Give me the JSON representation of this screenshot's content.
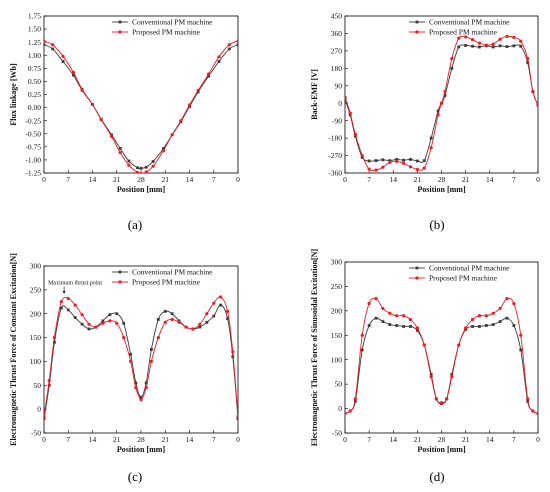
{
  "colors": {
    "conventional": "#3a3a3a",
    "proposed": "#ee1c24",
    "axis": "#000000"
  },
  "chart_data": [
    {
      "id": "a",
      "type": "line",
      "caption": "(a)",
      "xlabel": "Position [mm]",
      "ylabel": "Flux linkage [Wb]",
      "xtick_labels": [
        "0",
        "7",
        "14",
        "21",
        "28",
        "21",
        "14",
        "7",
        "0"
      ],
      "xlim": [
        0,
        56
      ],
      "ylim": [
        -1.25,
        1.75
      ],
      "yticks": [
        -1.25,
        -1.0,
        -0.75,
        -0.5,
        -0.25,
        0,
        0.25,
        0.5,
        0.75,
        1.0,
        1.25,
        1.5,
        1.75
      ],
      "ytick_labels": [
        "-1.25",
        "-1.00",
        "-0.75",
        "-0.50",
        "-0.25",
        "0.00",
        "0.25",
        "0.50",
        "0.75",
        "1.00",
        "1.25",
        "1.50",
        "1.75"
      ],
      "legend": {
        "position": "top-right",
        "entries": [
          "Conventional PM machine",
          "Proposed PM machine"
        ]
      },
      "series": [
        {
          "name": "Conventional PM machine",
          "x": [
            0,
            2.5,
            5.5,
            8.5,
            11,
            14,
            16.5,
            19.5,
            22,
            24.5,
            27,
            28,
            29.5,
            31.5,
            34.5,
            37,
            39.5,
            42,
            44.5,
            47.5,
            50.5,
            53.5,
            56
          ],
          "y": [
            1.2,
            1.12,
            0.88,
            0.62,
            0.33,
            0.06,
            -0.22,
            -0.52,
            -0.78,
            -1.02,
            -1.15,
            -1.16,
            -1.14,
            -1.03,
            -0.78,
            -0.52,
            -0.27,
            0.02,
            0.3,
            0.6,
            0.88,
            1.12,
            1.2
          ]
        },
        {
          "name": "Proposed PM machine",
          "x": [
            0,
            2.5,
            5.5,
            8.5,
            11,
            14,
            16.5,
            19.5,
            22,
            24.5,
            27,
            28,
            29.5,
            31.5,
            34.5,
            37,
            39.5,
            42,
            44.5,
            47.5,
            50.5,
            53.5,
            56
          ],
          "y": [
            1.27,
            1.2,
            0.98,
            0.67,
            0.35,
            0.06,
            -0.23,
            -0.55,
            -0.86,
            -1.1,
            -1.24,
            -1.26,
            -1.23,
            -1.12,
            -0.82,
            -0.52,
            -0.25,
            0.05,
            0.33,
            0.64,
            0.97,
            1.2,
            1.27
          ]
        }
      ]
    },
    {
      "id": "b",
      "type": "line",
      "caption": "(b)",
      "xlabel": "Position [mm]",
      "ylabel": "Back-EMF [V]",
      "xtick_labels": [
        "0",
        "7",
        "14",
        "21",
        "28",
        "21",
        "14",
        "7",
        "0"
      ],
      "xlim": [
        0,
        56
      ],
      "ylim": [
        -360,
        450
      ],
      "yticks": [
        -360,
        -270,
        -180,
        -90,
        0,
        90,
        180,
        270,
        360,
        450
      ],
      "ytick_labels": [
        "-360",
        "-270",
        "-180",
        "-90",
        "0",
        "90",
        "180",
        "270",
        "360",
        "450"
      ],
      "legend": {
        "position": "top-right",
        "entries": [
          "Conventional PM machine",
          "Proposed PM machine"
        ]
      },
      "series": [
        {
          "name": "Conventional PM machine",
          "x": [
            0,
            1.5,
            3,
            5,
            7,
            9,
            11,
            13,
            15,
            17,
            19,
            21,
            23,
            25,
            27,
            28,
            29,
            31,
            33,
            35,
            37,
            39,
            41,
            43,
            45,
            47,
            49,
            51,
            53,
            54.5,
            56
          ],
          "y": [
            20,
            -60,
            -170,
            -280,
            -298,
            -296,
            -292,
            -296,
            -290,
            -294,
            -290,
            -298,
            -296,
            -180,
            -40,
            0,
            40,
            180,
            290,
            298,
            294,
            290,
            296,
            290,
            296,
            292,
            296,
            294,
            210,
            60,
            -10
          ]
        },
        {
          "name": "Proposed PM machine",
          "x": [
            0,
            1.5,
            3,
            5,
            7,
            9,
            11,
            13,
            15,
            17,
            19,
            21,
            23,
            25,
            27,
            28,
            29,
            31,
            33,
            35,
            37,
            39,
            41,
            43,
            45,
            47,
            49,
            51,
            53,
            54.5,
            56
          ],
          "y": [
            30,
            -50,
            -160,
            -270,
            -340,
            -345,
            -330,
            -305,
            -300,
            -310,
            -328,
            -342,
            -335,
            -230,
            -60,
            0,
            60,
            230,
            335,
            342,
            328,
            310,
            300,
            305,
            330,
            345,
            340,
            320,
            230,
            60,
            -10
          ]
        }
      ]
    },
    {
      "id": "c",
      "type": "line",
      "caption": "(c)",
      "xlabel": "Position [mm]",
      "ylabel": "Electromagnetic Thrust Force of Constant Excitation[N]",
      "xtick_labels": [
        "0",
        "7",
        "14",
        "21",
        "28",
        "21",
        "14",
        "7",
        "0"
      ],
      "xlim": [
        0,
        56
      ],
      "ylim": [
        -50,
        300
      ],
      "yticks": [
        -50,
        0,
        50,
        100,
        150,
        200,
        250,
        300
      ],
      "ytick_labels": [
        "-50",
        "0",
        "50",
        "100",
        "150",
        "200",
        "250",
        "300"
      ],
      "legend": {
        "position": "top-right",
        "entries": [
          "Conventional PM machine",
          "Proposed PM machine"
        ]
      },
      "annotation": {
        "text": "Maximum thrust point",
        "x": 5.8,
        "y": 240
      },
      "series": [
        {
          "name": "Conventional PM machine",
          "x": [
            0,
            1.5,
            3,
            5,
            7,
            9,
            11,
            13,
            15,
            17,
            19,
            21,
            23,
            25,
            26.5,
            28,
            29.5,
            31,
            33,
            35,
            37,
            39,
            41,
            43,
            45,
            47,
            49,
            51,
            53,
            54.5,
            56
          ],
          "y": [
            -20,
            50,
            140,
            212,
            208,
            192,
            178,
            168,
            172,
            185,
            198,
            200,
            180,
            115,
            55,
            25,
            55,
            125,
            188,
            205,
            200,
            185,
            172,
            168,
            172,
            182,
            195,
            218,
            190,
            110,
            -20
          ]
        },
        {
          "name": "Proposed PM machine",
          "x": [
            0,
            1.5,
            3,
            5,
            7,
            9,
            11,
            13,
            15,
            17,
            19,
            21,
            23,
            25,
            26.5,
            28,
            29.5,
            31,
            33,
            35,
            37,
            39,
            41,
            43,
            45,
            47,
            49,
            51,
            53,
            54.5,
            56
          ],
          "y": [
            -15,
            60,
            150,
            225,
            232,
            218,
            198,
            178,
            172,
            180,
            185,
            180,
            150,
            100,
            45,
            20,
            45,
            100,
            150,
            182,
            188,
            182,
            172,
            168,
            178,
            200,
            222,
            235,
            205,
            120,
            -15
          ]
        }
      ]
    },
    {
      "id": "d",
      "type": "line",
      "caption": "(d)",
      "xlabel": "Position [mm]",
      "ylabel": "Electromagnetic Thrust Force of Sinusoidal Excitation[N]",
      "xtick_labels": [
        "0",
        "7",
        "14",
        "21",
        "28",
        "21",
        "14",
        "7",
        "0"
      ],
      "xlim": [
        0,
        56
      ],
      "ylim": [
        -50,
        300
      ],
      "yticks": [
        -50,
        0,
        50,
        100,
        150,
        200,
        250,
        300
      ],
      "ytick_labels": [
        "-50",
        "0",
        "50",
        "100",
        "150",
        "200",
        "250",
        "300"
      ],
      "legend": {
        "position": "top-right",
        "entries": [
          "Conventional PM machine",
          "Proposed PM machine"
        ]
      },
      "series": [
        {
          "name": "Conventional PM machine",
          "x": [
            0,
            1.5,
            3,
            5,
            7,
            9,
            11,
            13,
            15,
            17,
            19,
            21,
            23,
            25,
            26.5,
            28,
            29.5,
            31,
            33,
            35,
            37,
            39,
            41,
            43,
            45,
            47,
            49,
            51,
            53,
            54.5,
            56
          ],
          "y": [
            -10,
            -5,
            15,
            120,
            170,
            185,
            178,
            172,
            170,
            168,
            168,
            160,
            130,
            70,
            20,
            10,
            20,
            70,
            130,
            162,
            168,
            168,
            170,
            172,
            178,
            185,
            170,
            120,
            15,
            -5,
            -10
          ]
        },
        {
          "name": "Proposed PM machine",
          "x": [
            0,
            1.5,
            3,
            5,
            7,
            9,
            11,
            13,
            15,
            17,
            19,
            21,
            23,
            25,
            26.5,
            28,
            29.5,
            31,
            33,
            35,
            37,
            39,
            41,
            43,
            45,
            47,
            49,
            51,
            53,
            54.5,
            56
          ],
          "y": [
            -10,
            -5,
            20,
            150,
            215,
            225,
            205,
            195,
            190,
            190,
            182,
            165,
            130,
            65,
            20,
            12,
            20,
            65,
            130,
            165,
            182,
            190,
            190,
            195,
            205,
            225,
            215,
            150,
            20,
            -5,
            -10
          ]
        }
      ]
    }
  ]
}
